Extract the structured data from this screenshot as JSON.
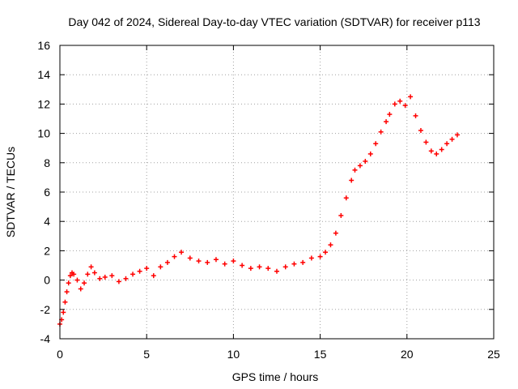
{
  "chart_data": {
    "type": "scatter",
    "title": "Day 042 of 2024, Sidereal Day-to-day VTEC variation (SDTVAR) for receiver p113",
    "xlabel": "GPS time / hours",
    "ylabel": "SDTVAR / TECUs",
    "xlim": [
      0,
      25
    ],
    "ylim": [
      -4,
      16
    ],
    "x_ticks": [
      "0",
      "5",
      "10",
      "15",
      "20",
      "25"
    ],
    "y_ticks": [
      "-4",
      "-2",
      "0",
      "2",
      "4",
      "6",
      "8",
      "10",
      "12",
      "14",
      "16"
    ],
    "grid": true,
    "marker": "+",
    "series": [
      {
        "name": "SDTVAR",
        "color": "#ff0000",
        "x": [
          0.0,
          0.1,
          0.2,
          0.3,
          0.4,
          0.5,
          0.6,
          0.7,
          0.8,
          1.0,
          1.2,
          1.4,
          1.6,
          1.8,
          2.0,
          2.3,
          2.6,
          3.0,
          3.4,
          3.8,
          4.2,
          4.6,
          5.0,
          5.4,
          5.8,
          6.2,
          6.6,
          7.0,
          7.5,
          8.0,
          8.5,
          9.0,
          9.5,
          10.0,
          10.5,
          11.0,
          11.5,
          12.0,
          12.5,
          13.0,
          13.5,
          14.0,
          14.5,
          15.0,
          15.3,
          15.6,
          15.9,
          16.2,
          16.5,
          16.8,
          17.0,
          17.3,
          17.6,
          17.9,
          18.2,
          18.5,
          18.8,
          19.0,
          19.3,
          19.6,
          19.9,
          20.2,
          20.5,
          20.8,
          21.1,
          21.4,
          21.7,
          22.0,
          22.3,
          22.6,
          22.9
        ],
        "values": [
          -3.0,
          -2.7,
          -2.2,
          -1.5,
          -0.8,
          -0.2,
          0.3,
          0.5,
          0.4,
          0.0,
          -0.6,
          -0.2,
          0.4,
          0.9,
          0.5,
          0.1,
          0.2,
          0.3,
          -0.1,
          0.1,
          0.4,
          0.6,
          0.8,
          0.3,
          0.9,
          1.2,
          1.6,
          1.9,
          1.5,
          1.3,
          1.2,
          1.4,
          1.1,
          1.3,
          1.0,
          0.8,
          0.9,
          0.8,
          0.6,
          0.9,
          1.1,
          1.2,
          1.5,
          1.6,
          1.9,
          2.4,
          3.2,
          4.4,
          5.6,
          6.8,
          7.5,
          7.8,
          8.1,
          8.6,
          9.3,
          10.1,
          10.8,
          11.3,
          12.0,
          12.2,
          11.9,
          12.5,
          11.2,
          10.2,
          9.4,
          8.8,
          8.6,
          8.9,
          9.3,
          9.6,
          9.9
        ]
      }
    ]
  }
}
